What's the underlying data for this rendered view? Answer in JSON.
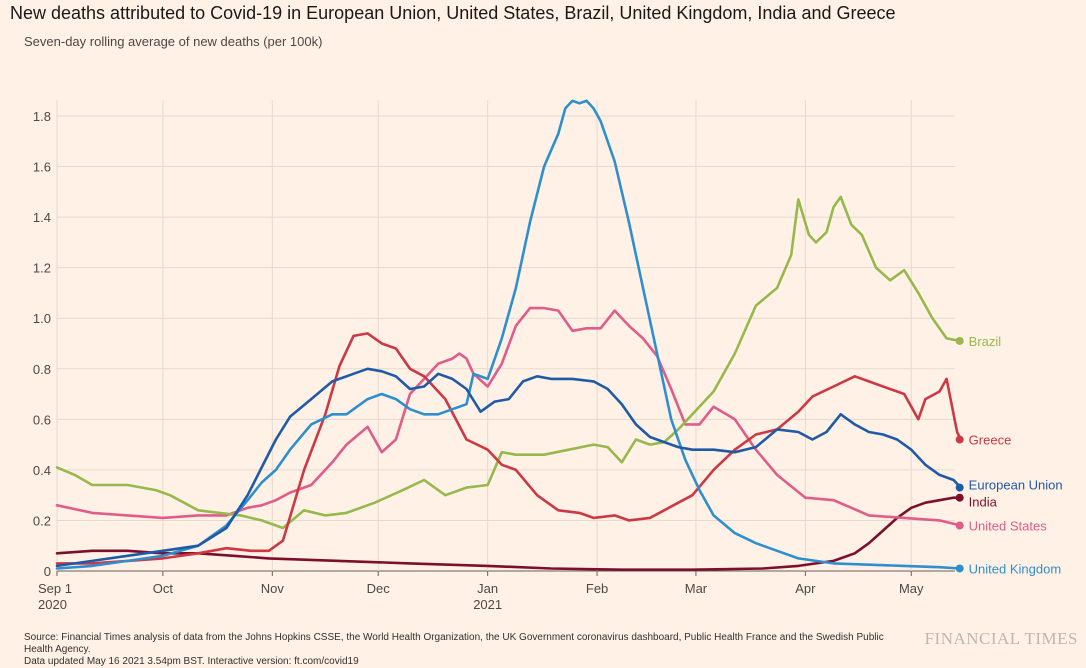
{
  "chart_data": {
    "type": "line",
    "title": "New deaths attributed to Covid-19 in European Union, United States, Brazil, United Kingdom, India and Greece",
    "subtitle": "Seven-day rolling average of new deaths (per 100k)",
    "xlabel": "",
    "ylabel": "",
    "ylim": [
      0,
      1.85
    ],
    "yticks": [
      0,
      0.2,
      0.4,
      0.6,
      0.8,
      1.0,
      1.2,
      1.4,
      1.6,
      1.8
    ],
    "ytick_labels": [
      "0",
      "0.2",
      "0.4",
      "0.6",
      "0.8",
      "1.0",
      "1.2",
      "1.4",
      "1.6",
      "1.8"
    ],
    "xlim": [
      0,
      256
    ],
    "xticks": [
      {
        "day": 0,
        "label": "Sep 1",
        "label2": "2020"
      },
      {
        "day": 30,
        "label": "Oct",
        "label2": ""
      },
      {
        "day": 61,
        "label": "Nov",
        "label2": ""
      },
      {
        "day": 91,
        "label": "Dec",
        "label2": ""
      },
      {
        "day": 122,
        "label": "Jan",
        "label2": "2021"
      },
      {
        "day": 153,
        "label": "Feb",
        "label2": ""
      },
      {
        "day": 181,
        "label": "Mar",
        "label2": ""
      },
      {
        "day": 212,
        "label": "Apr",
        "label2": ""
      },
      {
        "day": 242,
        "label": "May",
        "label2": ""
      }
    ],
    "x_unit": "days since 2020-09-01",
    "grid": true,
    "legend": "end-of-line labels",
    "series": [
      {
        "name": "Brazil",
        "color": "#96b84c",
        "x": [
          0,
          5,
          10,
          20,
          28,
          32,
          40,
          46,
          52,
          58,
          64,
          70,
          76,
          82,
          90,
          98,
          104,
          110,
          116,
          122,
          126,
          130,
          138,
          145,
          152,
          156,
          160,
          164,
          168,
          172,
          176,
          180,
          186,
          192,
          198,
          204,
          208,
          210,
          213,
          215,
          218,
          220,
          222,
          225,
          228,
          232,
          236,
          240,
          244,
          248,
          252,
          256
        ],
        "values": [
          0.41,
          0.38,
          0.34,
          0.34,
          0.32,
          0.3,
          0.24,
          0.23,
          0.22,
          0.2,
          0.17,
          0.24,
          0.22,
          0.23,
          0.27,
          0.32,
          0.36,
          0.3,
          0.33,
          0.34,
          0.47,
          0.46,
          0.46,
          0.48,
          0.5,
          0.49,
          0.43,
          0.52,
          0.5,
          0.51,
          0.56,
          0.62,
          0.71,
          0.86,
          1.05,
          1.12,
          1.25,
          1.47,
          1.33,
          1.3,
          1.34,
          1.44,
          1.48,
          1.37,
          1.33,
          1.2,
          1.15,
          1.19,
          1.1,
          1.0,
          0.92,
          0.91
        ]
      },
      {
        "name": "Greece",
        "color": "#cc3844",
        "x": [
          0,
          10,
          20,
          30,
          40,
          48,
          55,
          60,
          64,
          70,
          76,
          80,
          84,
          88,
          92,
          96,
          100,
          104,
          110,
          116,
          122,
          126,
          130,
          136,
          142,
          148,
          152,
          158,
          162,
          168,
          172,
          176,
          180,
          186,
          192,
          198,
          204,
          210,
          214,
          220,
          226,
          230,
          236,
          240,
          244,
          246,
          250,
          252,
          255,
          256
        ],
        "values": [
          0.03,
          0.03,
          0.04,
          0.05,
          0.07,
          0.09,
          0.08,
          0.08,
          0.12,
          0.4,
          0.62,
          0.81,
          0.93,
          0.94,
          0.9,
          0.88,
          0.8,
          0.77,
          0.68,
          0.52,
          0.48,
          0.42,
          0.4,
          0.3,
          0.24,
          0.23,
          0.21,
          0.22,
          0.2,
          0.21,
          0.24,
          0.27,
          0.3,
          0.4,
          0.48,
          0.54,
          0.56,
          0.63,
          0.69,
          0.73,
          0.77,
          0.75,
          0.72,
          0.7,
          0.6,
          0.68,
          0.71,
          0.76,
          0.55,
          0.52
        ]
      },
      {
        "name": "European Union",
        "color": "#1f5aa6",
        "x": [
          0,
          10,
          20,
          30,
          40,
          48,
          54,
          58,
          62,
          66,
          72,
          78,
          84,
          88,
          92,
          96,
          100,
          104,
          108,
          112,
          116,
          120,
          124,
          128,
          132,
          136,
          140,
          146,
          152,
          156,
          160,
          164,
          168,
          172,
          176,
          180,
          186,
          192,
          198,
          204,
          210,
          214,
          218,
          222,
          226,
          230,
          234,
          238,
          242,
          246,
          250,
          254,
          256
        ],
        "values": [
          0.02,
          0.04,
          0.06,
          0.08,
          0.1,
          0.17,
          0.3,
          0.41,
          0.52,
          0.61,
          0.68,
          0.75,
          0.78,
          0.8,
          0.79,
          0.77,
          0.72,
          0.73,
          0.78,
          0.76,
          0.72,
          0.63,
          0.67,
          0.68,
          0.75,
          0.77,
          0.76,
          0.76,
          0.75,
          0.72,
          0.66,
          0.58,
          0.53,
          0.51,
          0.49,
          0.48,
          0.48,
          0.47,
          0.49,
          0.56,
          0.55,
          0.52,
          0.55,
          0.62,
          0.58,
          0.55,
          0.54,
          0.52,
          0.48,
          0.42,
          0.38,
          0.36,
          0.33
        ]
      },
      {
        "name": "India",
        "color": "#7d0f2e",
        "x": [
          0,
          10,
          20,
          30,
          40,
          50,
          60,
          80,
          100,
          122,
          140,
          160,
          180,
          200,
          210,
          220,
          226,
          230,
          234,
          238,
          242,
          246,
          250,
          254,
          256
        ],
        "values": [
          0.07,
          0.08,
          0.08,
          0.07,
          0.07,
          0.06,
          0.05,
          0.04,
          0.03,
          0.02,
          0.01,
          0.005,
          0.005,
          0.01,
          0.02,
          0.04,
          0.07,
          0.11,
          0.16,
          0.21,
          0.25,
          0.27,
          0.28,
          0.29,
          0.29
        ]
      },
      {
        "name": "United States",
        "color": "#e05c8a",
        "x": [
          0,
          10,
          20,
          30,
          40,
          48,
          54,
          58,
          62,
          66,
          72,
          78,
          82,
          88,
          92,
          96,
          100,
          104,
          108,
          112,
          114,
          116,
          118,
          122,
          126,
          130,
          134,
          138,
          142,
          146,
          150,
          154,
          158,
          162,
          166,
          170,
          174,
          178,
          182,
          186,
          192,
          198,
          204,
          212,
          220,
          230,
          240,
          250,
          256
        ],
        "values": [
          0.26,
          0.23,
          0.22,
          0.21,
          0.22,
          0.22,
          0.25,
          0.26,
          0.28,
          0.31,
          0.34,
          0.43,
          0.5,
          0.57,
          0.47,
          0.52,
          0.7,
          0.76,
          0.82,
          0.84,
          0.86,
          0.84,
          0.78,
          0.73,
          0.82,
          0.97,
          1.04,
          1.04,
          1.03,
          0.95,
          0.96,
          0.96,
          1.03,
          0.97,
          0.92,
          0.85,
          0.72,
          0.58,
          0.58,
          0.65,
          0.6,
          0.48,
          0.38,
          0.29,
          0.28,
          0.22,
          0.21,
          0.2,
          0.18
        ]
      },
      {
        "name": "United Kingdom",
        "color": "#2e8fcf",
        "x": [
          0,
          10,
          20,
          30,
          40,
          48,
          54,
          58,
          62,
          66,
          72,
          78,
          82,
          88,
          92,
          96,
          100,
          104,
          108,
          112,
          116,
          118,
          122,
          126,
          130,
          134,
          138,
          142,
          144,
          146,
          148,
          150,
          152,
          154,
          158,
          162,
          166,
          170,
          174,
          178,
          182,
          186,
          192,
          198,
          204,
          210,
          220,
          230,
          240,
          250,
          256
        ],
        "values": [
          0.01,
          0.02,
          0.04,
          0.06,
          0.1,
          0.18,
          0.28,
          0.35,
          0.4,
          0.48,
          0.58,
          0.62,
          0.62,
          0.68,
          0.7,
          0.68,
          0.64,
          0.62,
          0.62,
          0.64,
          0.66,
          0.78,
          0.76,
          0.92,
          1.12,
          1.38,
          1.6,
          1.73,
          1.83,
          1.86,
          1.85,
          1.86,
          1.83,
          1.78,
          1.62,
          1.38,
          1.12,
          0.86,
          0.6,
          0.44,
          0.32,
          0.22,
          0.15,
          0.11,
          0.08,
          0.05,
          0.03,
          0.025,
          0.02,
          0.015,
          0.01
        ]
      }
    ],
    "end_labels": [
      "Brazil",
      "Greece",
      "European Union",
      "India",
      "United States",
      "United Kingdom"
    ]
  },
  "footer": {
    "source": "Source: Financial Times analysis of data from the Johns Hopkins CSSE, the World Health Organization, the UK Government coronavirus dashboard, Public Health France and the Swedish Public Health Agency.",
    "updated": "Data updated May 16 2021 3.54pm BST. Interactive version: ft.com/covid19"
  },
  "brand": "FINANCIAL TIMES"
}
